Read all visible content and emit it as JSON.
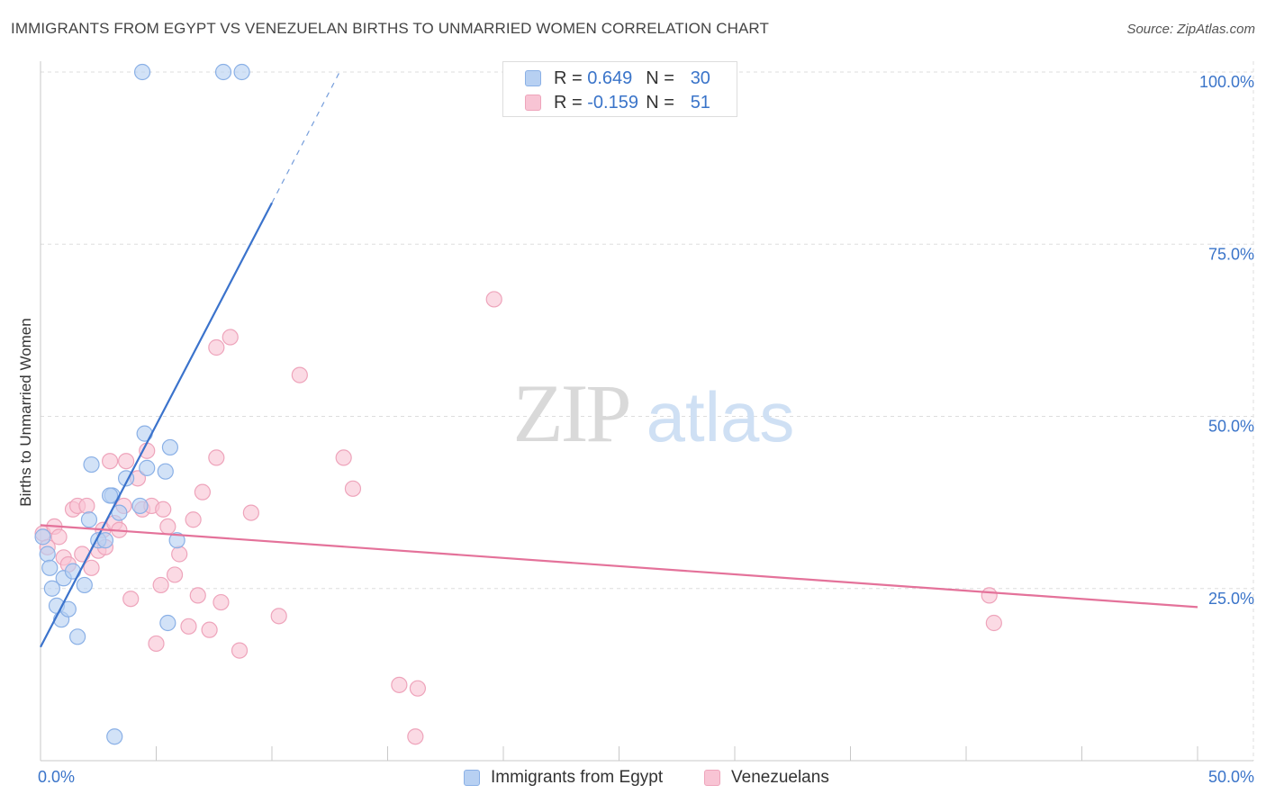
{
  "title": "IMMIGRANTS FROM EGYPT VS VENEZUELAN BIRTHS TO UNMARRIED WOMEN CORRELATION CHART",
  "source": "Source: ZipAtlas.com",
  "watermark": {
    "zip": "ZIP",
    "atlas": "atlas"
  },
  "legend": {
    "r_label": "R =",
    "n_label": "N =",
    "rows": [
      {
        "r": "0.649",
        "n": "30"
      },
      {
        "r": "-0.159",
        "n": "51"
      }
    ]
  },
  "colors": {
    "blue_fill": "#b7d0f2",
    "blue_stroke": "#8ab0e6",
    "blue_line": "#3b73cc",
    "pink_fill": "#f8c4d4",
    "pink_stroke": "#eea4bb",
    "pink_line": "#e4729a",
    "axis_label": "#3a74c9",
    "grid": "#dddddd"
  },
  "chart_data": {
    "type": "scatter",
    "title": "IMMIGRANTS FROM EGYPT VS VENEZUELAN BIRTHS TO UNMARRIED WOMEN CORRELATION CHART",
    "xlabel": "",
    "ylabel": "Births to Unmarried Women",
    "xlim": [
      0,
      50
    ],
    "ylim": [
      0,
      102
    ],
    "x_tick_labels": [
      "0.0%",
      "50.0%"
    ],
    "y_ticks": [
      25,
      50,
      75,
      100
    ],
    "y_tick_labels": [
      "25.0%",
      "50.0%",
      "75.0%",
      "100.0%"
    ],
    "grid": true,
    "legend_position": "top-center",
    "series": [
      {
        "name": "Immigrants from Egypt",
        "r": 0.649,
        "n": 30,
        "points": [
          [
            0.1,
            32.5
          ],
          [
            0.3,
            30.0
          ],
          [
            0.4,
            28.0
          ],
          [
            0.5,
            25.0
          ],
          [
            0.7,
            22.5
          ],
          [
            0.9,
            20.5
          ],
          [
            1.0,
            26.5
          ],
          [
            1.2,
            22.0
          ],
          [
            1.4,
            27.5
          ],
          [
            1.6,
            18.0
          ],
          [
            1.9,
            25.5
          ],
          [
            2.1,
            35.0
          ],
          [
            2.2,
            43.0
          ],
          [
            2.5,
            32.0
          ],
          [
            2.8,
            32.0
          ],
          [
            3.1,
            38.5
          ],
          [
            3.4,
            36.0
          ],
          [
            3.7,
            41.0
          ],
          [
            4.3,
            37.0
          ],
          [
            4.5,
            47.5
          ],
          [
            4.6,
            42.5
          ],
          [
            5.4,
            42.0
          ],
          [
            5.6,
            45.5
          ],
          [
            5.9,
            32.0
          ],
          [
            5.5,
            20.0
          ],
          [
            3.2,
            3.5
          ],
          [
            4.4,
            100.0
          ],
          [
            7.9,
            100.0
          ],
          [
            8.7,
            100.0
          ],
          [
            3.0,
            38.5
          ]
        ],
        "trend": {
          "x0": 0.0,
          "y0": 16.5,
          "x1": 10.0,
          "y1": 81.0,
          "dash_x1": 13.0,
          "dash_y1": 100.5
        }
      },
      {
        "name": "Venezuelans",
        "r": -0.159,
        "n": 51,
        "points": [
          [
            0.1,
            33.0
          ],
          [
            0.3,
            31.0
          ],
          [
            0.6,
            34.0
          ],
          [
            0.8,
            32.5
          ],
          [
            1.0,
            29.5
          ],
          [
            1.2,
            28.5
          ],
          [
            1.4,
            36.5
          ],
          [
            1.6,
            37.0
          ],
          [
            1.8,
            30.0
          ],
          [
            2.0,
            37.0
          ],
          [
            2.2,
            28.0
          ],
          [
            2.5,
            30.5
          ],
          [
            2.7,
            33.5
          ],
          [
            2.8,
            31.0
          ],
          [
            3.0,
            43.5
          ],
          [
            3.2,
            34.5
          ],
          [
            3.4,
            33.5
          ],
          [
            3.7,
            43.5
          ],
          [
            3.9,
            23.5
          ],
          [
            4.2,
            41.0
          ],
          [
            4.4,
            36.5
          ],
          [
            4.6,
            45.0
          ],
          [
            4.8,
            37.0
          ],
          [
            5.0,
            17.0
          ],
          [
            5.2,
            25.5
          ],
          [
            5.5,
            34.0
          ],
          [
            5.8,
            27.0
          ],
          [
            6.0,
            30.0
          ],
          [
            6.4,
            19.5
          ],
          [
            6.6,
            35.0
          ],
          [
            6.8,
            24.0
          ],
          [
            7.0,
            39.0
          ],
          [
            7.3,
            19.0
          ],
          [
            7.6,
            44.0
          ],
          [
            7.8,
            23.0
          ],
          [
            7.6,
            60.0
          ],
          [
            8.2,
            61.5
          ],
          [
            8.6,
            16.0
          ],
          [
            9.1,
            36.0
          ],
          [
            10.3,
            21.0
          ],
          [
            11.2,
            56.0
          ],
          [
            13.1,
            44.0
          ],
          [
            13.5,
            39.5
          ],
          [
            15.5,
            11.0
          ],
          [
            16.3,
            10.5
          ],
          [
            16.2,
            3.5
          ],
          [
            19.6,
            67.0
          ],
          [
            41.0,
            24.0
          ],
          [
            41.2,
            20.0
          ],
          [
            3.6,
            37.0
          ],
          [
            5.3,
            36.5
          ]
        ],
        "trend": {
          "x0": 0.0,
          "y0": 34.2,
          "x1": 50.0,
          "y1": 22.3
        }
      }
    ]
  },
  "bottom_legend": [
    "Immigrants from Egypt",
    "Venezuelans"
  ]
}
